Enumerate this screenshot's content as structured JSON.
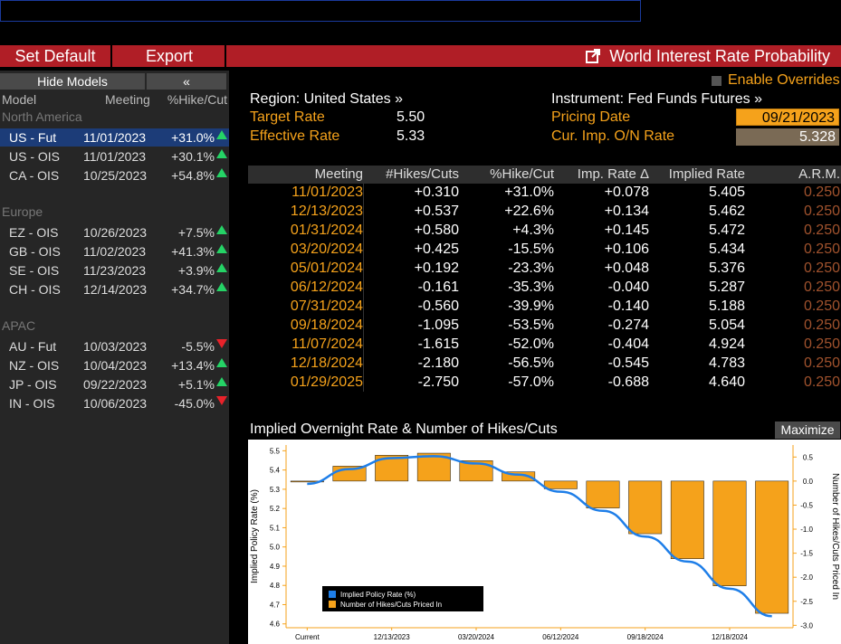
{
  "command_bar": {
    "value": ""
  },
  "toolbar": {
    "set_default": "Set Default",
    "export": "Export",
    "title": "World Interest Rate Probability",
    "popout_icon": "popout-icon"
  },
  "left_panel": {
    "hide_models": "Hide Models",
    "collapse": "«",
    "headers": {
      "model": "Model",
      "meeting": "Meeting",
      "pct": "%Hike/Cut"
    },
    "groups": [
      {
        "label": "North America",
        "rows": [
          {
            "model": "US - Fut",
            "meeting": "11/01/2023",
            "pct": "+31.0%",
            "dir": "up",
            "selected": true
          },
          {
            "model": "US - OIS",
            "meeting": "11/01/2023",
            "pct": "+30.1%",
            "dir": "up"
          },
          {
            "model": "CA - OIS",
            "meeting": "10/25/2023",
            "pct": "+54.8%",
            "dir": "up"
          }
        ]
      },
      {
        "label": "Europe",
        "rows": [
          {
            "model": "EZ - OIS",
            "meeting": "10/26/2023",
            "pct": "+7.5%",
            "dir": "up"
          },
          {
            "model": "GB - OIS",
            "meeting": "11/02/2023",
            "pct": "+41.3%",
            "dir": "up"
          },
          {
            "model": "SE - OIS",
            "meeting": "11/23/2023",
            "pct": "+3.9%",
            "dir": "up"
          },
          {
            "model": "CH - OIS",
            "meeting": "12/14/2023",
            "pct": "+34.7%",
            "dir": "up"
          }
        ]
      },
      {
        "label": "APAC",
        "rows": [
          {
            "model": "AU - Fut",
            "meeting": "10/03/2023",
            "pct": "-5.5%",
            "dir": "down"
          },
          {
            "model": "NZ - OIS",
            "meeting": "10/04/2023",
            "pct": "+13.4%",
            "dir": "up"
          },
          {
            "model": "JP - OIS",
            "meeting": "09/22/2023",
            "pct": "+5.1%",
            "dir": "up"
          },
          {
            "model": "IN - OIS",
            "meeting": "10/06/2023",
            "pct": "-45.0%",
            "dir": "down"
          }
        ]
      }
    ]
  },
  "info": {
    "enable_overrides": "Enable Overrides",
    "region": "Region: United States »",
    "instrument": "Instrument: Fed Funds Futures »",
    "target_rate_label": "Target Rate",
    "target_rate": "5.50",
    "effective_rate_label": "Effective Rate",
    "effective_rate": "5.33",
    "pricing_date_label": "Pricing Date",
    "pricing_date": "09/21/2023",
    "cur_imp_label": "Cur. Imp. O/N Rate",
    "cur_imp": "5.328"
  },
  "table": {
    "headers": [
      "Meeting",
      "#Hikes/Cuts",
      "%Hike/Cut",
      "Imp. Rate Δ",
      "Implied Rate",
      "A.R.M."
    ],
    "rows": [
      [
        "11/01/2023",
        "+0.310",
        "+31.0%",
        "+0.078",
        "5.405",
        "0.250"
      ],
      [
        "12/13/2023",
        "+0.537",
        "+22.6%",
        "+0.134",
        "5.462",
        "0.250"
      ],
      [
        "01/31/2024",
        "+0.580",
        "+4.3%",
        "+0.145",
        "5.472",
        "0.250"
      ],
      [
        "03/20/2024",
        "+0.425",
        "-15.5%",
        "+0.106",
        "5.434",
        "0.250"
      ],
      [
        "05/01/2024",
        "+0.192",
        "-23.3%",
        "+0.048",
        "5.376",
        "0.250"
      ],
      [
        "06/12/2024",
        "-0.161",
        "-35.3%",
        "-0.040",
        "5.287",
        "0.250"
      ],
      [
        "07/31/2024",
        "-0.560",
        "-39.9%",
        "-0.140",
        "5.188",
        "0.250"
      ],
      [
        "09/18/2024",
        "-1.095",
        "-53.5%",
        "-0.274",
        "5.054",
        "0.250"
      ],
      [
        "11/07/2024",
        "-1.615",
        "-52.0%",
        "-0.404",
        "4.924",
        "0.250"
      ],
      [
        "12/18/2024",
        "-2.180",
        "-56.5%",
        "-0.545",
        "4.783",
        "0.250"
      ],
      [
        "01/29/2025",
        "-2.750",
        "-57.0%",
        "-0.688",
        "4.640",
        "0.250"
      ]
    ]
  },
  "chart": {
    "title": "Implied Overnight Rate & Number of Hikes/Cuts",
    "maximize": "Maximize"
  },
  "chart_data": {
    "type": "bar",
    "categories": [
      "Current",
      "11/01/2023",
      "12/13/2023",
      "01/31/2024",
      "03/20/2024",
      "05/01/2024",
      "06/12/2024",
      "07/31/2024",
      "09/18/2024",
      "11/07/2024",
      "12/18/2024",
      "01/29/2025"
    ],
    "tick_labels": [
      "Current",
      "12/13/2023",
      "03/20/2024",
      "06/12/2024",
      "09/18/2024",
      "12/18/2024"
    ],
    "tick_indices": [
      0,
      2,
      4,
      6,
      8,
      10
    ],
    "series": [
      {
        "name": "Implied Policy Rate (%)",
        "kind": "line",
        "axis": "left",
        "color": "#1e7ee8",
        "values": [
          5.328,
          5.405,
          5.462,
          5.472,
          5.434,
          5.376,
          5.287,
          5.188,
          5.054,
          4.924,
          4.783,
          4.64
        ]
      },
      {
        "name": "Number of Hikes/Cuts Priced In",
        "kind": "bar",
        "axis": "right",
        "color": "#f5a21b",
        "values": [
          0,
          0.31,
          0.537,
          0.58,
          0.425,
          0.192,
          -0.161,
          -0.56,
          -1.095,
          -1.615,
          -2.18,
          -2.75
        ]
      }
    ],
    "ylabel": "Implied Policy Rate (%)",
    "y2label": "Number of Hikes/Cuts Priced In",
    "ylim": [
      4.58,
      5.53
    ],
    "y2lim": [
      -3.05,
      0.75
    ],
    "yticks": [
      "5.5",
      "5.4",
      "5.3",
      "5.2",
      "5.1",
      "5.0",
      "4.9",
      "4.8",
      "4.7",
      "4.6"
    ],
    "y2ticks": [
      "0.5",
      "0.0",
      "-0.5",
      "-1.0",
      "-1.5",
      "-2.0",
      "-2.5",
      "-3.0"
    ],
    "legend_position": "bottom-left"
  }
}
